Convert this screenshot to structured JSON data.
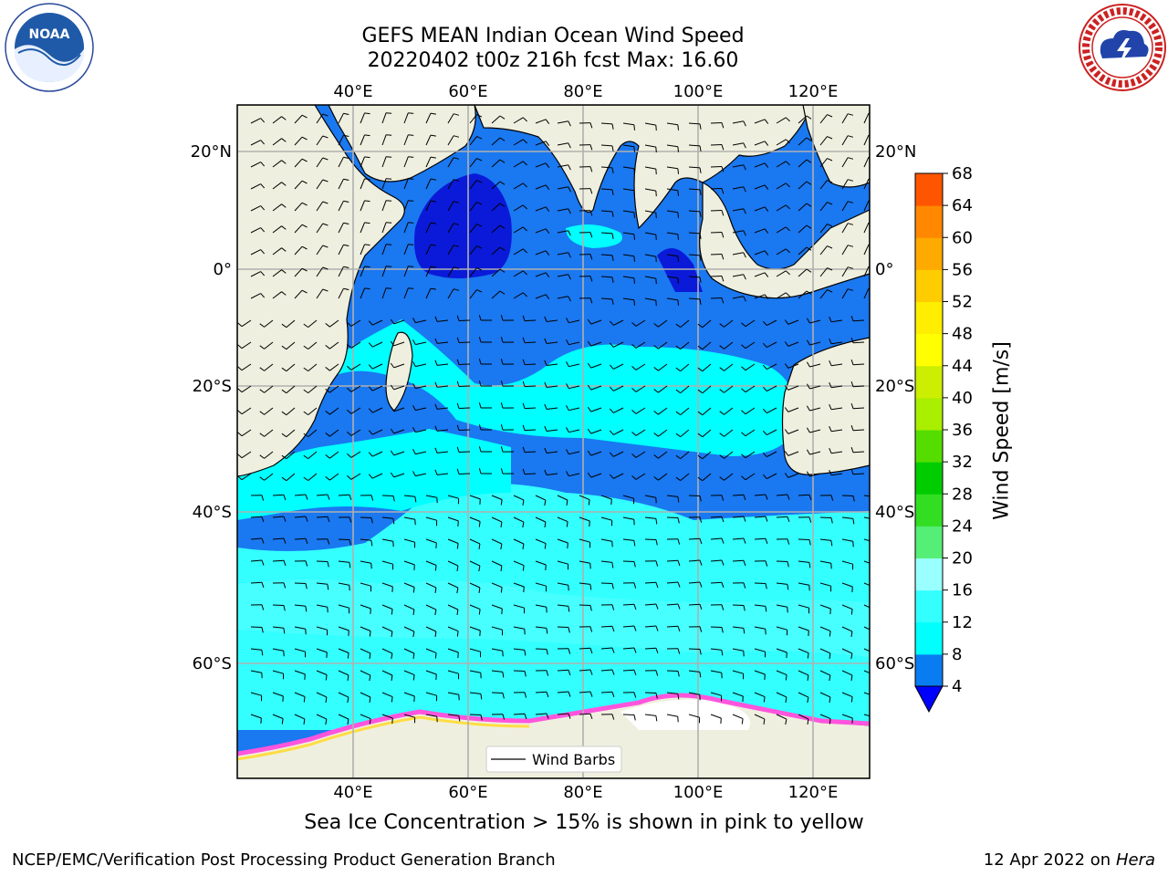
{
  "title": {
    "line1": "GEFS MEAN Indian Ocean Wind Speed",
    "line2": "20220402 t00z 216h fcst   Max: 16.60"
  },
  "axes": {
    "lon_ticks": [
      "40°E",
      "60°E",
      "80°E",
      "100°E",
      "120°E"
    ],
    "lat_ticks": [
      "20°N",
      "0°",
      "20°S",
      "40°S",
      "60°S"
    ]
  },
  "legend": {
    "label": "Wind Barbs"
  },
  "colorbar": {
    "title": "Wind Speed [m/s]",
    "ticks": [
      "4",
      "8",
      "12",
      "16",
      "20",
      "24",
      "28",
      "32",
      "36",
      "40",
      "44",
      "48",
      "52",
      "56",
      "60",
      "64",
      "68"
    ],
    "colors": [
      "#0a7cf2",
      "#00ffff",
      "#33ffff",
      "#99ffff",
      "#55ee77",
      "#33dd22",
      "#00cc00",
      "#55dd00",
      "#aaee00",
      "#ccee00",
      "#ffff00",
      "#ffee00",
      "#ffcc00",
      "#ffaa00",
      "#ff8800",
      "#ff5500",
      "#ff2200",
      "#ff0000"
    ],
    "extend_color": "#0000ff"
  },
  "map_colors": {
    "land": "#efefdf",
    "wind_4_8": "#1a78f0",
    "wind_8_12": "#00ffff",
    "wind_12_16": "#40ffff",
    "low": "#0a1ad8",
    "ice_pink": "#ff55dd",
    "ice_yellow": "#ffdd44"
  },
  "caption": "Sea Ice Concentration > 15% is shown in pink to yellow",
  "footer": {
    "left": "NCEP/EMC/Verification Post Processing Product Generation Branch",
    "date": "12 Apr 2022 on ",
    "machine": "Hera"
  },
  "logos": {
    "left": "noaa-logo",
    "right": "nws-logo"
  }
}
